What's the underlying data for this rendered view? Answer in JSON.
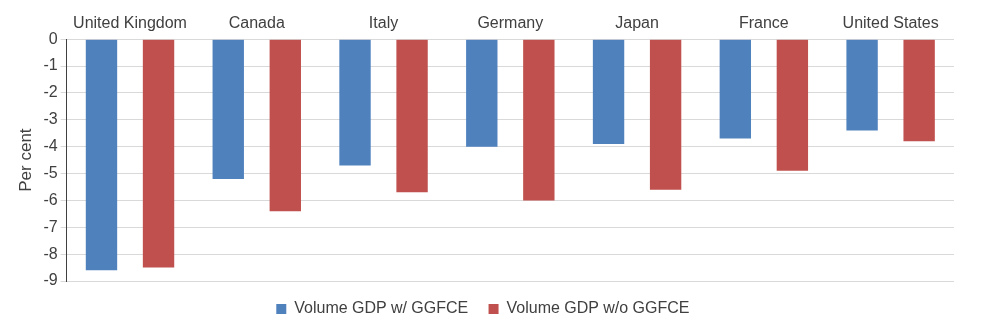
{
  "chart_data": {
    "type": "bar",
    "categories": [
      "United Kingdom",
      "Canada",
      "Italy",
      "Germany",
      "Japan",
      "France",
      "United States"
    ],
    "series": [
      {
        "name": "Volume GDP w/ GGFCE",
        "color": "#4f81bd",
        "values": [
          -8.6,
          -5.2,
          -4.7,
          -4.0,
          -3.9,
          -3.7,
          -3.4
        ]
      },
      {
        "name": "Volume GDP w/o GGFCE",
        "color": "#c0504d",
        "values": [
          -8.5,
          -6.4,
          -5.7,
          -6.0,
          -5.6,
          -4.9,
          -3.8
        ]
      }
    ],
    "ylabel": "Per cent",
    "ylim": [
      -9,
      0
    ],
    "yticks": [
      0,
      -1,
      -2,
      -3,
      -4,
      -5,
      -6,
      -7,
      -8,
      -9
    ],
    "grid": "y",
    "legend": "bottom"
  }
}
